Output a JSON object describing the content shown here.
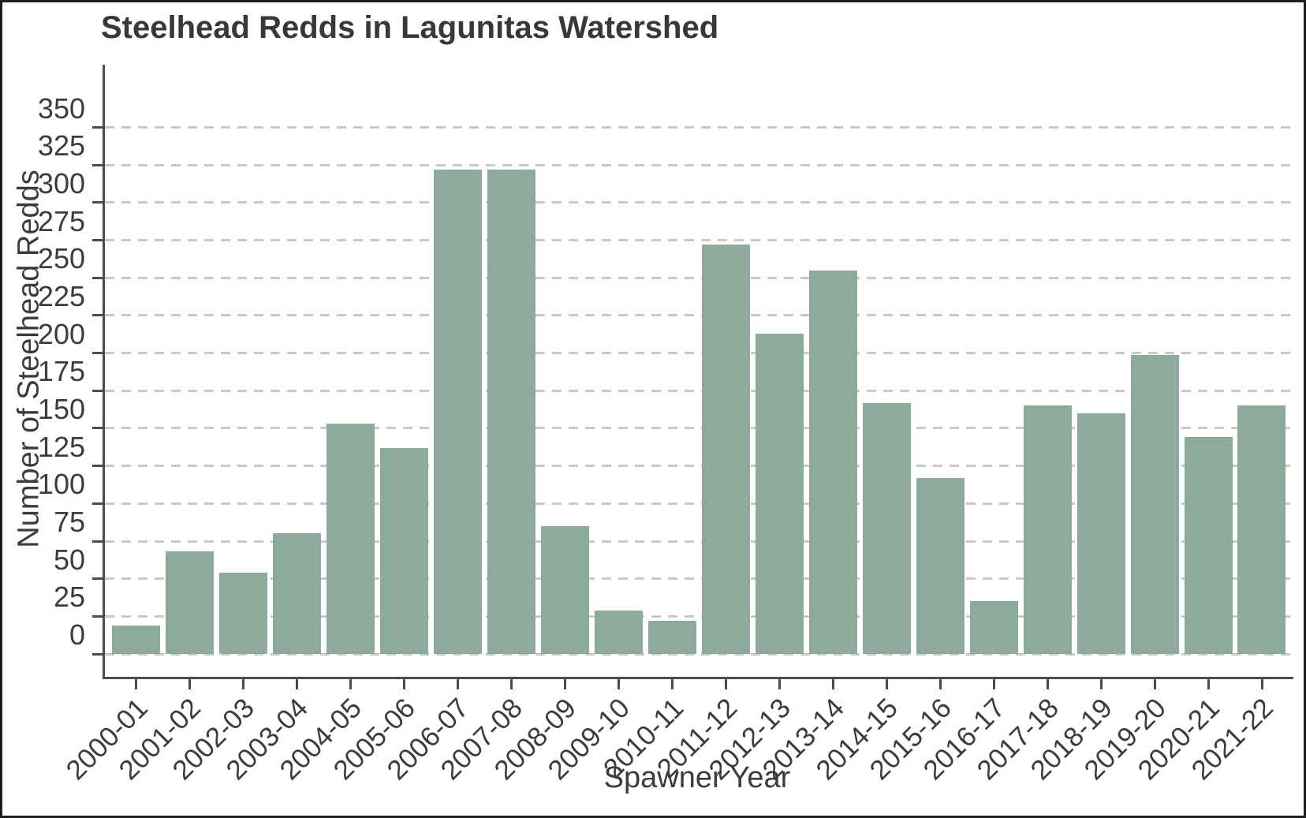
{
  "chart_data": {
    "type": "bar",
    "title": "Steelhead Redds in Lagunitas Watershed",
    "xlabel": "Spawner Year",
    "ylabel": "Number of Steelhead Redds",
    "categories": [
      "2000-01",
      "2001-02",
      "2002-03",
      "2003-04",
      "2004-05",
      "2005-06",
      "2006-07",
      "2007-08",
      "2008-09",
      "2009-10",
      "2010-11",
      "2011-12",
      "2012-13",
      "2013-14",
      "2014-15",
      "2015-16",
      "2016-17",
      "2017-18",
      "2018-19",
      "2019-20",
      "2020-21",
      "2021-22"
    ],
    "values": [
      19,
      68,
      54,
      80,
      153,
      137,
      322,
      322,
      85,
      29,
      22,
      272,
      213,
      255,
      167,
      117,
      35,
      165,
      160,
      199,
      144,
      165
    ],
    "y_ticks": [
      0,
      25,
      50,
      75,
      100,
      125,
      150,
      175,
      200,
      225,
      250,
      275,
      300,
      325,
      350
    ],
    "ylim": [
      0,
      392
    ],
    "grid": "horizontal dashed gridlines at each y tick",
    "legend_position": "none",
    "bar_color": "#8dab9c",
    "grid_color": "#c9c9c9",
    "axis_color": "#4d4d4d",
    "text_color": "#3c3c3c",
    "title_color": "#383838",
    "background_color": "#ffffff"
  }
}
